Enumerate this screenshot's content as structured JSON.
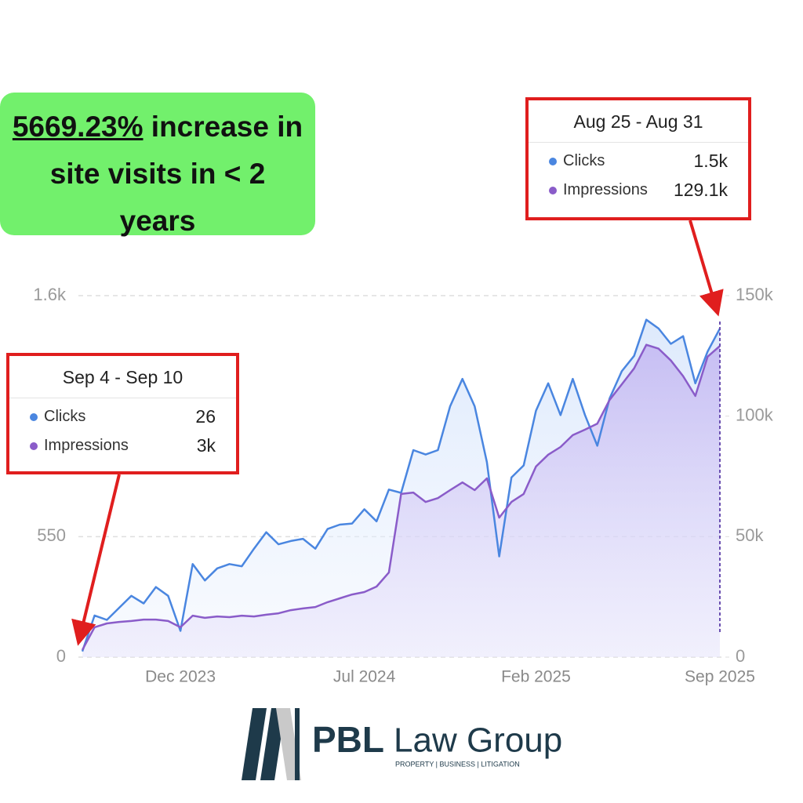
{
  "headline": {
    "highlight": "5669.23%",
    "text": "increase in site visits in < 2 years"
  },
  "tooltips": [
    {
      "title": "Sep 4 - Sep 10",
      "rows": [
        {
          "name": "Clicks",
          "value": "26"
        },
        {
          "name": "Impressions",
          "value": "3k"
        }
      ]
    },
    {
      "title": "Aug 25 - Aug 31",
      "rows": [
        {
          "name": "Clicks",
          "value": "1.5k"
        },
        {
          "name": "Impressions",
          "value": "129.1k"
        }
      ]
    }
  ],
  "logo": {
    "name": "PBL",
    "suffix": "Law Group",
    "tagline": "PROPERTY | BUSINESS | LITIGATION"
  },
  "chart_data": {
    "type": "line",
    "categories": [
      null,
      null,
      null,
      null,
      null,
      null,
      null,
      null,
      "Dec 2023",
      null,
      null,
      null,
      null,
      null,
      null,
      null,
      null,
      null,
      null,
      null,
      null,
      null,
      null,
      "Jul 2024",
      null,
      null,
      null,
      null,
      null,
      null,
      null,
      null,
      null,
      null,
      null,
      null,
      null,
      "Feb 2025",
      null,
      null,
      null,
      null,
      null,
      null,
      null,
      null,
      null,
      null,
      null,
      null,
      null,
      null,
      "Sep 2025"
    ],
    "series": [
      {
        "name": "Clicks",
        "color": "#4a86e0",
        "axis": "y",
        "values": [
          26,
          190,
          170,
          225,
          280,
          245,
          320,
          280,
          120,
          425,
          350,
          405,
          425,
          415,
          495,
          570,
          515,
          530,
          540,
          495,
          585,
          605,
          610,
          675,
          620,
          765,
          750,
          945,
          925,
          945,
          1145,
          1270,
          1145,
          890,
          460,
          820,
          875,
          1125,
          1250,
          1105,
          1270,
          1105,
          965,
          1180,
          1305,
          1375,
          1540,
          1500,
          1430,
          1465,
          1250,
          1395,
          1500
        ]
      },
      {
        "name": "Impressions",
        "color": "#8a5cc9",
        "axis": "y2",
        "values": [
          3000,
          12400,
          14000,
          14600,
          15000,
          15600,
          15600,
          15000,
          12400,
          17200,
          16300,
          16900,
          16600,
          17200,
          16900,
          17600,
          18200,
          19500,
          20200,
          20800,
          22800,
          24400,
          26000,
          27000,
          29300,
          35100,
          67700,
          68300,
          64400,
          66000,
          69300,
          72500,
          69300,
          74200,
          57900,
          64400,
          67700,
          79100,
          84000,
          87200,
          92100,
          94400,
          96900,
          106700,
          113200,
          119800,
          129600,
          128000,
          123100,
          116600,
          108400,
          124700,
          129100
        ]
      }
    ],
    "ylim": [
      0,
      1650
    ],
    "yticks": [
      0,
      550,
      {
        "value": 1650,
        "label": "1.6k"
      }
    ],
    "y2lim": [
      0,
      150000
    ],
    "y2ticks": [
      0,
      {
        "value": 50000,
        "label": "50k"
      },
      {
        "value": 100000,
        "label": "100k"
      },
      {
        "value": 150000,
        "label": "150k"
      }
    ],
    "grid": true
  }
}
